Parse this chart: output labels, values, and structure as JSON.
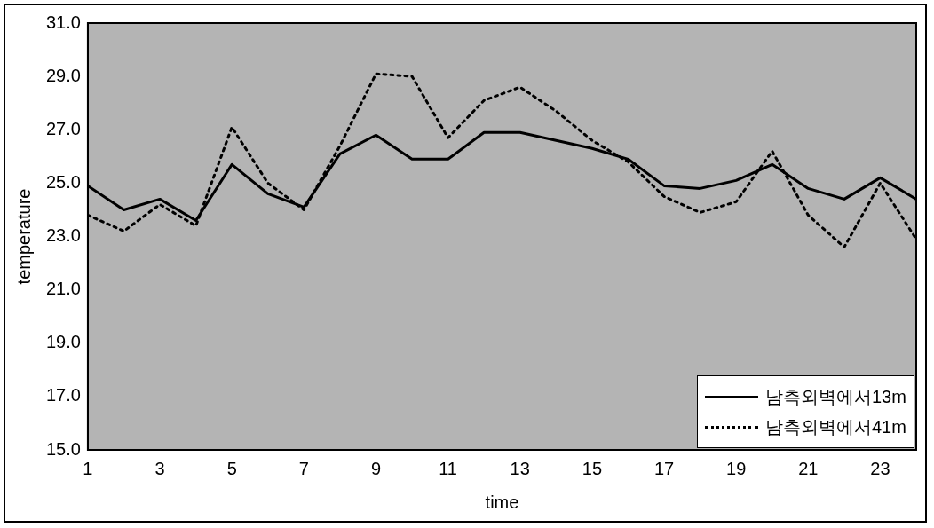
{
  "chart_data": {
    "type": "line",
    "xlabel": "time",
    "ylabel": "temperature",
    "x": [
      1,
      2,
      3,
      4,
      5,
      6,
      7,
      8,
      9,
      10,
      11,
      12,
      13,
      14,
      15,
      16,
      17,
      18,
      19,
      20,
      21,
      22,
      23,
      24
    ],
    "series": [
      {
        "name": "남측외벽에서13m",
        "color": "#000000",
        "line_style": "solid",
        "values": [
          24.9,
          24.0,
          24.4,
          23.6,
          25.7,
          24.6,
          24.1,
          26.1,
          26.8,
          25.9,
          25.9,
          26.9,
          26.9,
          26.6,
          26.3,
          25.9,
          24.9,
          24.8,
          25.1,
          25.7,
          24.8,
          24.4,
          25.2,
          24.4
        ]
      },
      {
        "name": "남측외벽에서41m",
        "color": "#000000",
        "line_style": "dotted",
        "values": [
          23.8,
          23.2,
          24.2,
          23.4,
          27.1,
          25.0,
          24.0,
          26.4,
          29.1,
          29.0,
          26.7,
          28.1,
          28.6,
          27.7,
          26.6,
          25.8,
          24.5,
          23.9,
          24.3,
          26.2,
          23.8,
          22.6,
          25.0,
          22.9
        ]
      }
    ],
    "xlim": [
      1,
      24
    ],
    "xticks": [
      1,
      3,
      5,
      7,
      9,
      11,
      13,
      15,
      17,
      19,
      21,
      23
    ],
    "ylim": [
      15,
      31
    ],
    "yticks": [
      {
        "value": 15,
        "label": "15.0"
      },
      {
        "value": 17,
        "label": "17.0"
      },
      {
        "value": 19,
        "label": "19.0"
      },
      {
        "value": 21,
        "label": "21.0"
      },
      {
        "value": 23,
        "label": "23.0"
      },
      {
        "value": 25,
        "label": "25.0"
      },
      {
        "value": 27,
        "label": "27.0"
      },
      {
        "value": 29,
        "label": "29.0"
      },
      {
        "value": 31,
        "label": "31.0"
      }
    ],
    "grid": false,
    "legend": "bottom right",
    "marker": "none"
  }
}
